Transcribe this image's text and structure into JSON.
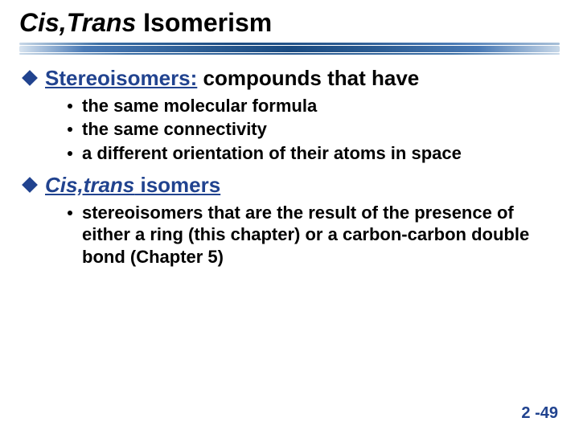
{
  "title": {
    "italic_part": "Cis,Trans",
    "rest": " Isomerism"
  },
  "colors": {
    "term_color": "#21438f",
    "diamond_color": "#21438f",
    "page_num_color": "#21438f",
    "text_color": "#000000"
  },
  "bullets": [
    {
      "term": "Stereoisomers:",
      "term_italic": false,
      "rest": " compounds that have",
      "children": [
        "the same molecular formula",
        "the same connectivity",
        "a different orientation of their atoms in space"
      ]
    },
    {
      "term": "Cis,trans",
      "term_italic": true,
      "rest": " isomers",
      "rest_bold_navy": false,
      "children": [
        "stereoisomers that are the result of the presence of either a ring (this chapter) or a carbon-carbon double bond (Chapter 5)"
      ]
    }
  ],
  "page_number": "2 -49"
}
